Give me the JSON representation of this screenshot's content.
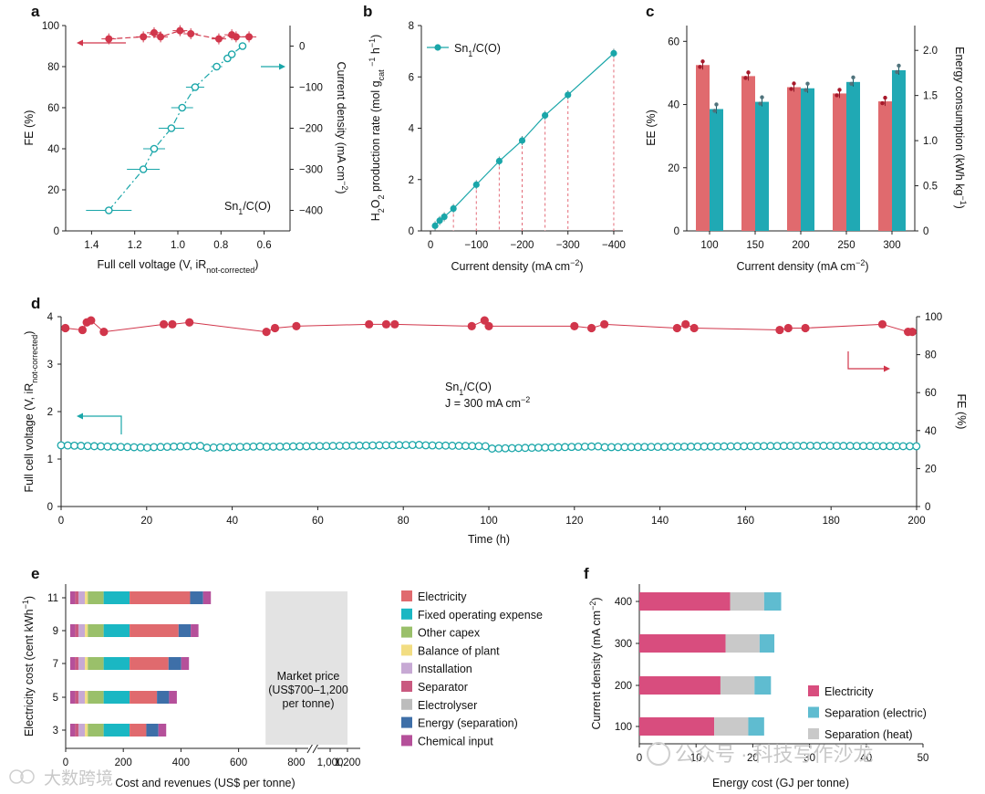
{
  "chart_data": [
    {
      "panel": "a",
      "type": "scatter",
      "xlabel_main": "Full cell voltage (V, iR",
      "xlabel_sub": "not-corrected",
      "xlabel_end": ")",
      "ylabel": "FE (%)",
      "y2label": "Current density (mA cm",
      "y2label_sup": "−2",
      "y2label_end": ")",
      "annotation": "Sn",
      "annotation_sub": "1",
      "annotation_end": "/C(O)",
      "xlim": [
        1.52,
        0.48
      ],
      "xticks": [
        "1.4",
        "1.2",
        "1.0",
        "0.8",
        "0.6"
      ],
      "xtick_values": [
        1.4,
        1.2,
        1.0,
        0.8,
        0.6
      ],
      "ylim": [
        0,
        100
      ],
      "yticks": [
        "0",
        "20",
        "40",
        "60",
        "80",
        "100"
      ],
      "y2lim": [
        -450,
        50
      ],
      "y2ticks": [
        "0",
        "−100",
        "−200",
        "−300",
        "−400"
      ],
      "y2tick_values": [
        0,
        -100,
        -200,
        -300,
        -400
      ],
      "series": [
        {
          "name": "FE",
          "axis": "left",
          "color": "#d1364b",
          "marker": "filled",
          "x": [
            1.32,
            1.16,
            1.11,
            1.08,
            0.99,
            0.94,
            0.81,
            0.75,
            0.73,
            0.67
          ],
          "y": [
            93.5,
            94.5,
            96.5,
            94.5,
            97.5,
            96.0,
            93.5,
            95.5,
            94.5,
            94.5
          ]
        },
        {
          "name": "Current density",
          "axis": "right",
          "color": "#1aa6a9",
          "marker": "open",
          "x": [
            1.32,
            1.16,
            1.11,
            1.03,
            0.98,
            0.92,
            0.82,
            0.77,
            0.75,
            0.7
          ],
          "y": [
            -400,
            -300,
            -250,
            -200,
            -150,
            -100,
            -50,
            -30,
            -20,
            0
          ]
        }
      ]
    },
    {
      "panel": "b",
      "type": "line",
      "xlabel": "Current density (mA cm",
      "xlabel_sup": "−2",
      "xlabel_end": ")",
      "ylabel": "H2O2 production rate (mol gcat−1 h−1)",
      "ylabel_parts": [
        "H",
        "2",
        "O",
        "2",
        " production rate (mol g",
        "cat",
        " ",
        "−1",
        " h",
        "−1",
        ")"
      ],
      "legend": "Sn",
      "legend_sub": "1",
      "legend_end": "/C(O)",
      "xlim": [
        -20,
        420
      ],
      "xticks": [
        "0",
        "−100",
        "−200",
        "−300",
        "−400"
      ],
      "xtick_values": [
        0,
        100,
        200,
        300,
        400
      ],
      "ylim": [
        0,
        8
      ],
      "yticks": [
        "0",
        "2",
        "4",
        "6",
        "8"
      ],
      "color": "#1aa6a9",
      "x": [
        10,
        20,
        30,
        50,
        100,
        150,
        200,
        250,
        300,
        400
      ],
      "y": [
        0.2,
        0.4,
        0.55,
        0.87,
        1.8,
        2.72,
        3.52,
        4.5,
        5.3,
        6.92
      ]
    },
    {
      "panel": "c",
      "type": "bar",
      "xlabel": "Current density (mA cm",
      "xlabel_sup": "−2",
      "xlabel_end": ")",
      "ylabel": "EE (%)",
      "y2label": "Energy consumption (kWh kg",
      "y2label_sup": "−1",
      "y2label_end": ")",
      "categories": [
        "100",
        "150",
        "200",
        "250",
        "300"
      ],
      "ylim": [
        0,
        65
      ],
      "yticks": [
        "0",
        "20",
        "40",
        "60"
      ],
      "y2lim": [
        0,
        2.275
      ],
      "y2ticks": [
        "0",
        "0.5",
        "1.0",
        "1.5",
        "2.0"
      ],
      "y2tick_values": [
        0,
        0.5,
        1.0,
        1.5,
        2.0
      ],
      "series": [
        {
          "name": "EE",
          "axis": "left",
          "color": "#e06a6e",
          "values": [
            52.5,
            49,
            45.5,
            43.5,
            41
          ]
        },
        {
          "name": "Energy consumption",
          "axis": "right",
          "color": "#20a9b4",
          "values": [
            1.35,
            1.43,
            1.58,
            1.65,
            1.78
          ]
        }
      ]
    },
    {
      "panel": "d",
      "type": "line",
      "xlabel": "Time (h)",
      "ylabel": "Full cell voltage (V, iR",
      "ylabel_sub": "not-corrected",
      "ylabel_end": ")",
      "y2label": "FE (%)",
      "annotation1": "Sn",
      "annotation1_sub": "1",
      "annotation1_end": "/C(O)",
      "annotation2": "J",
      "annotation2_mid": " = 300 mA cm",
      "annotation2_sup": "−2",
      "xlim": [
        0,
        200
      ],
      "xticks": [
        "0",
        "20",
        "40",
        "60",
        "80",
        "100",
        "120",
        "140",
        "160",
        "180",
        "200"
      ],
      "ylim": [
        0,
        4
      ],
      "yticks": [
        "0",
        "1",
        "2",
        "3",
        "4"
      ],
      "y2lim": [
        0,
        100
      ],
      "y2ticks": [
        "0",
        "20",
        "40",
        "60",
        "80",
        "100"
      ],
      "series": [
        {
          "name": "FE",
          "axis": "right",
          "color": "#d1364b",
          "x": [
            1,
            5,
            6,
            7,
            10,
            24,
            26,
            30,
            48,
            50,
            55,
            72,
            76,
            78,
            96,
            99,
            100,
            120,
            124,
            127,
            144,
            146,
            148,
            168,
            170,
            174,
            192,
            198,
            199
          ],
          "y": [
            94,
            93,
            97,
            98,
            92,
            96,
            96,
            97,
            92,
            94,
            95,
            96,
            96,
            96,
            95,
            98,
            95,
            95,
            94,
            96,
            94,
            96,
            94,
            93,
            94,
            94,
            96,
            92,
            92
          ]
        },
        {
          "name": "Voltage",
          "axis": "left",
          "color": "#1aa6a9",
          "t_start": 0,
          "t_end": 200,
          "t_step": 1.55,
          "segments": [
            {
              "t0": 0,
              "t1": 21,
              "v0": 1.29,
              "v1": 1.24
            },
            {
              "t0": 21,
              "t1": 34,
              "v0": 1.25,
              "v1": 1.28
            },
            {
              "t0": 34,
              "t1": 48,
              "v0": 1.24,
              "v1": 1.27
            },
            {
              "t0": 48,
              "t1": 85,
              "v0": 1.26,
              "v1": 1.3
            },
            {
              "t0": 85,
              "t1": 100,
              "v0": 1.29,
              "v1": 1.27
            },
            {
              "t0": 100,
              "t1": 127,
              "v0": 1.22,
              "v1": 1.27
            },
            {
              "t0": 127,
              "t1": 175,
              "v0": 1.25,
              "v1": 1.28
            },
            {
              "t0": 175,
              "t1": 200,
              "v0": 1.28,
              "v1": 1.27
            }
          ]
        }
      ]
    },
    {
      "panel": "e",
      "type": "bar",
      "orientation": "horizontal-stacked",
      "xlabel": "Cost and revenues (US$ per tonne)",
      "ylabel": "Electricity cost (cent kWh",
      "ylabel_sup": "−1",
      "ylabel_end": ")",
      "categories": [
        "11",
        "9",
        "7",
        "5",
        "3"
      ],
      "xticks": [
        "0",
        "200",
        "400",
        "600",
        "800",
        "1,000",
        "1,200"
      ],
      "xtick_values": [
        0,
        200,
        400,
        600,
        800,
        1000,
        1200
      ],
      "market_price_label": [
        "Market price",
        "(US$700–1,200",
        "per tonne)"
      ],
      "market_price_range": [
        700,
        1200
      ],
      "series": [
        {
          "name": "Chemical input",
          "color": "#b5509a",
          "values": [
            17,
            17,
            17,
            17,
            17
          ]
        },
        {
          "name": "Separator",
          "color": "#c95a80",
          "values": [
            12,
            12,
            12,
            12,
            12
          ]
        },
        {
          "name": "Installation",
          "color": "#c7a9d4",
          "values": [
            22,
            22,
            22,
            22,
            22
          ]
        },
        {
          "name": "Balance of plant",
          "color": "#f2dd82",
          "values": [
            10,
            10,
            10,
            10,
            10
          ]
        },
        {
          "name": "Other capex",
          "color": "#9ac06a",
          "values": [
            55,
            55,
            55,
            55,
            55
          ]
        },
        {
          "name": "Fixed operating expense",
          "color": "#1ab7c3",
          "values": [
            90,
            90,
            90,
            90,
            90
          ]
        },
        {
          "name": "Electricity",
          "color": "#e06a6e",
          "values": [
            210,
            170,
            135,
            95,
            58
          ]
        },
        {
          "name": "Energy (separation)",
          "color": "#3e6fa8",
          "values": [
            45,
            42,
            44,
            42,
            42
          ]
        },
        {
          "name": "Electrolyser",
          "color": "#bcbcbc",
          "values": [
            0,
            0,
            0,
            0,
            0
          ]
        },
        {
          "name": "Chemical input top",
          "color": "#b5509a",
          "values": [
            27,
            27,
            27,
            27,
            27
          ]
        }
      ],
      "legend": [
        "Electricity",
        "Fixed operating expense",
        "Other capex",
        "Balance of plant",
        "Installation",
        "Separator",
        "Electrolyser",
        "Energy (separation)",
        "Chemical input"
      ],
      "legend_colors": [
        "#e06a6e",
        "#1ab7c3",
        "#9ac06a",
        "#f2dd82",
        "#c7a9d4",
        "#c95a80",
        "#bcbcbc",
        "#3e6fa8",
        "#b5509a"
      ]
    },
    {
      "panel": "f",
      "type": "bar",
      "orientation": "horizontal-stacked",
      "xlabel": "Energy cost (GJ per tonne)",
      "ylabel": "Current density (mA cm",
      "ylabel_sup": "−2",
      "ylabel_end": ")",
      "categories": [
        "400",
        "300",
        "200",
        "100"
      ],
      "xlim": [
        0,
        50
      ],
      "xticks": [
        "0",
        "10",
        "20",
        "30",
        "40",
        "50"
      ],
      "series": [
        {
          "name": "Electricity",
          "color": "#d84d7e",
          "values": [
            16,
            15.2,
            14.3,
            13.2
          ]
        },
        {
          "name": "Separation (heat)",
          "color": "#c9c9c9",
          "values": [
            6,
            6,
            6,
            6
          ]
        },
        {
          "name": "Separation (electric)",
          "color": "#5fbcd0",
          "values": [
            3,
            2.6,
            2.9,
            2.8
          ]
        }
      ],
      "legend": [
        "Electricity",
        "Separation (electric)",
        "Separation (heat)"
      ],
      "legend_colors": [
        "#d84d7e",
        "#5fbcd0",
        "#c9c9c9"
      ]
    }
  ],
  "panel_labels": [
    "a",
    "b",
    "c",
    "d",
    "e",
    "f"
  ],
  "watermark": {
    "left": "大数跨境",
    "right": "公众号 · 科技写作沙龙"
  }
}
